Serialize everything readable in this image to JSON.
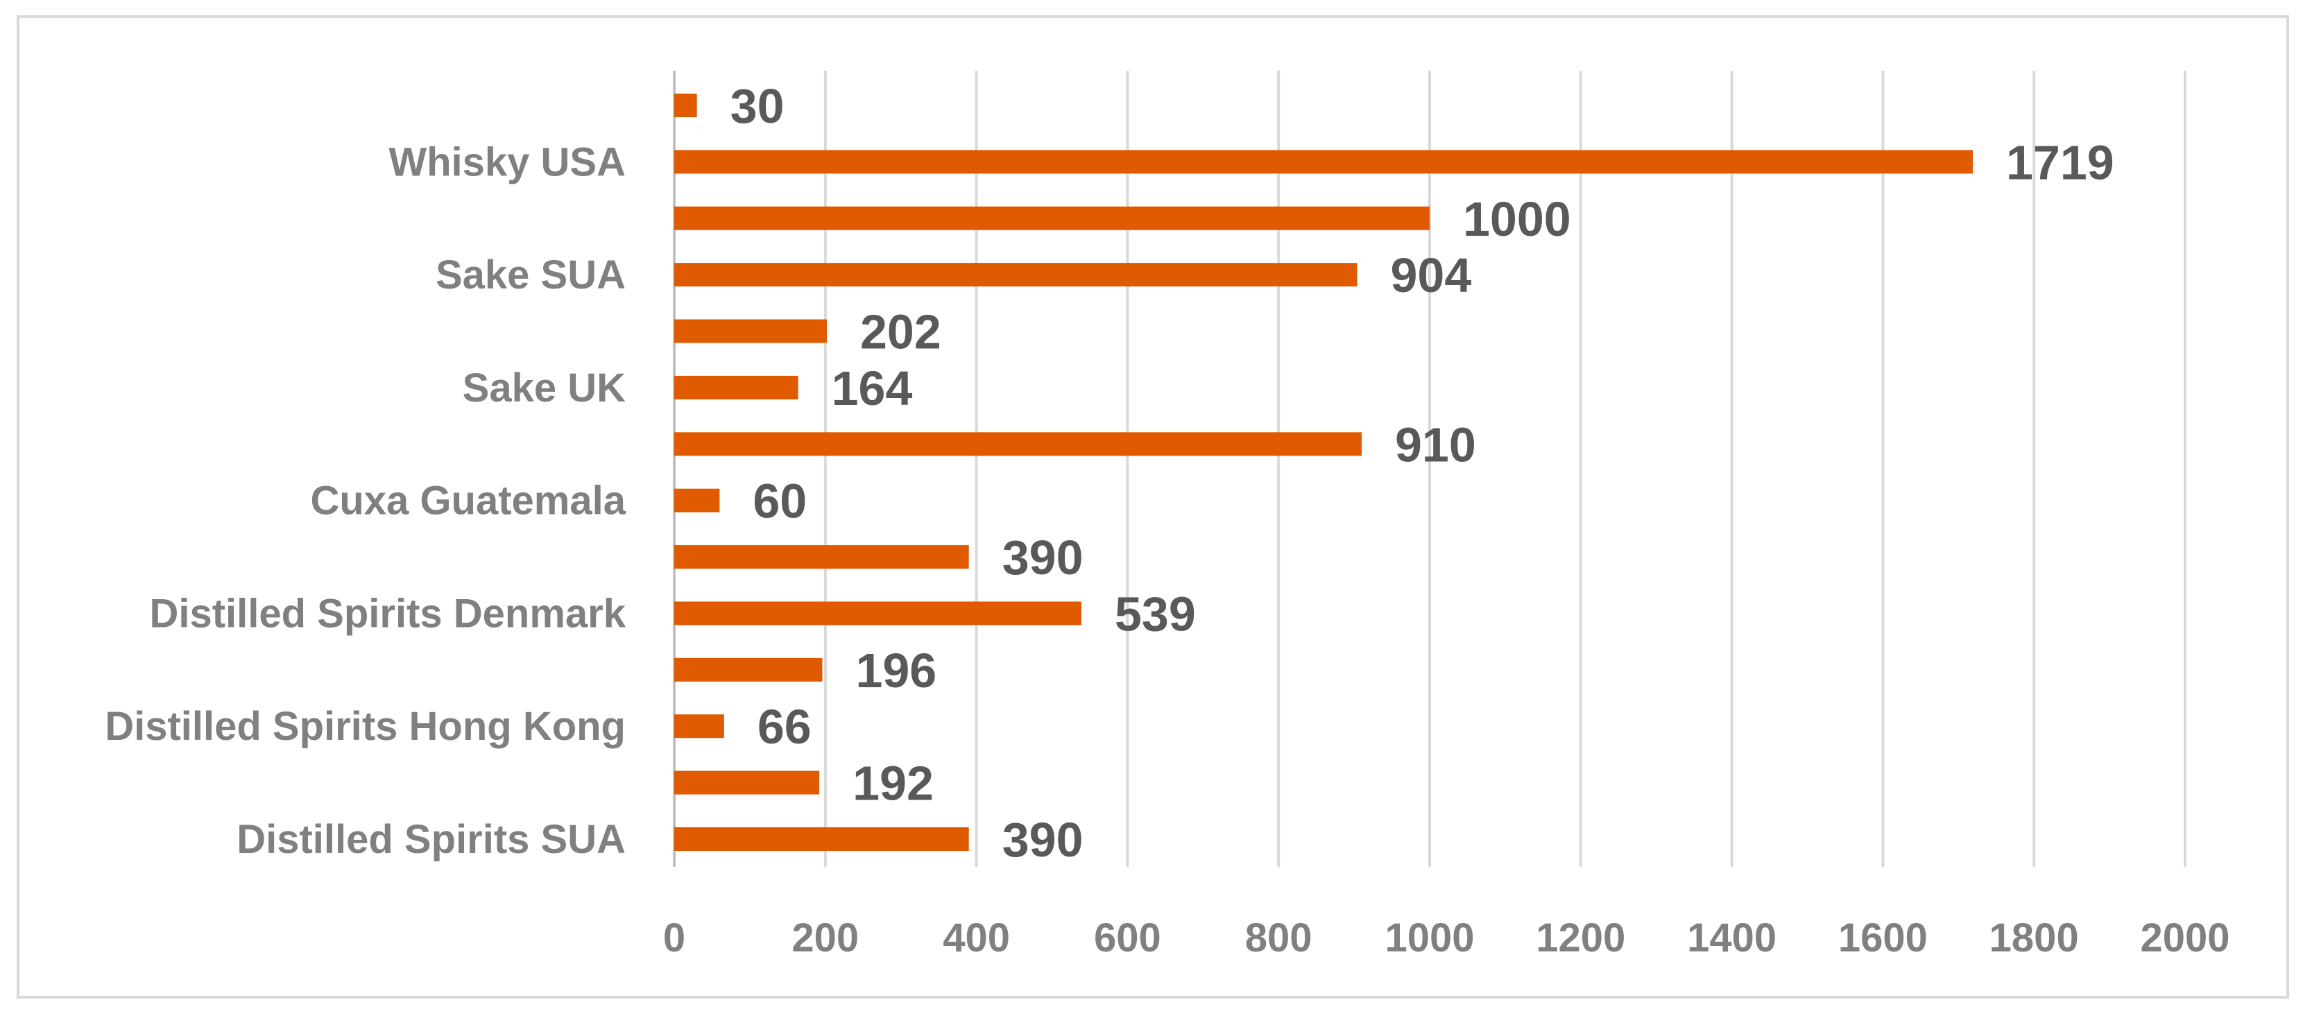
{
  "chart_data": {
    "type": "bar",
    "orientation": "horizontal",
    "categories": [
      "Distilled Spirits SUA",
      "",
      "Distilled Spirits Hong Kong",
      "",
      "Distilled Spirits Denmark",
      "",
      "Cuxa Guatemala",
      "",
      "Sake UK",
      "",
      "Sake SUA",
      "",
      "Whisky USA",
      ""
    ],
    "series": [
      {
        "values": [
          390,
          192,
          66,
          196,
          539,
          390,
          60,
          910,
          164,
          202,
          904,
          1000,
          1719,
          30
        ],
        "color": "#e05a00"
      }
    ],
    "data_labels": [
      "390",
      "192",
      "66",
      "196",
      "539",
      "390",
      "60",
      "910",
      "164",
      "202",
      "904",
      "1000",
      "1719",
      "30"
    ],
    "xlim": [
      0,
      2000
    ],
    "x_ticks": [
      "0",
      "200",
      "400",
      "600",
      "800",
      "1000",
      "1200",
      "1400",
      "1600",
      "1800",
      "2000"
    ],
    "title": "",
    "xlabel": "",
    "ylabel": "",
    "grid": "vertical",
    "legend": "none"
  }
}
